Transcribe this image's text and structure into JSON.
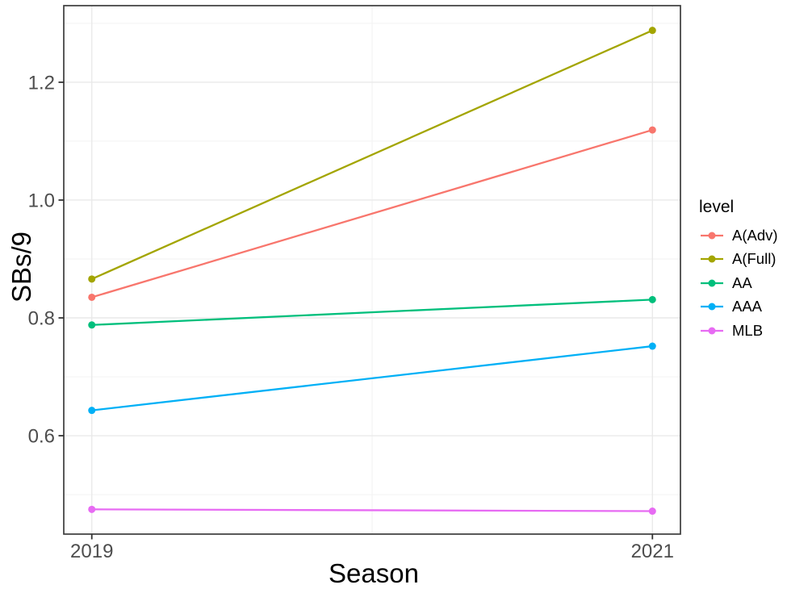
{
  "chart_data": {
    "type": "line",
    "title": "",
    "xlabel": "Season",
    "ylabel": "SBs/9",
    "x": [
      2019,
      2021
    ],
    "x_tick_labels": [
      "2019",
      "2021"
    ],
    "series": [
      {
        "name": "A(Adv)",
        "color": "#F8766D",
        "values": [
          0.835,
          1.119
        ]
      },
      {
        "name": "A(Full)",
        "color": "#A3A500",
        "values": [
          0.866,
          1.288
        ]
      },
      {
        "name": "AA",
        "color": "#00BF7C",
        "values": [
          0.788,
          0.831
        ]
      },
      {
        "name": "AAA",
        "color": "#00B0F6",
        "values": [
          0.643,
          0.752
        ]
      },
      {
        "name": "MLB",
        "color": "#E76BF3",
        "values": [
          0.475,
          0.472
        ]
      }
    ],
    "legend": {
      "title": "level",
      "position": "right"
    },
    "axes": {
      "xlim": [
        2018.9,
        2021.1
      ],
      "ylim": [
        0.433,
        1.33
      ],
      "y_major_ticks": [
        0.6,
        0.8,
        1.0,
        1.2
      ],
      "y_tick_labels": [
        "0.6",
        "0.8",
        "1.0",
        "1.2"
      ],
      "y_minor_ticks": [
        0.5,
        0.7,
        0.9,
        1.1,
        1.3
      ],
      "x_minor_ticks": [
        2020
      ],
      "grid": true
    },
    "style": {
      "background": "#ffffff",
      "panel_background": "#ffffff",
      "panel_border": "#3c3c3c",
      "grid_major_color": "#e9e9e9",
      "grid_minor_color": "#f1f1f1",
      "tick_color": "#333333",
      "tick_label_color": "#4d4d4d",
      "line_width": 2.3,
      "point_radius": 4.5
    }
  }
}
